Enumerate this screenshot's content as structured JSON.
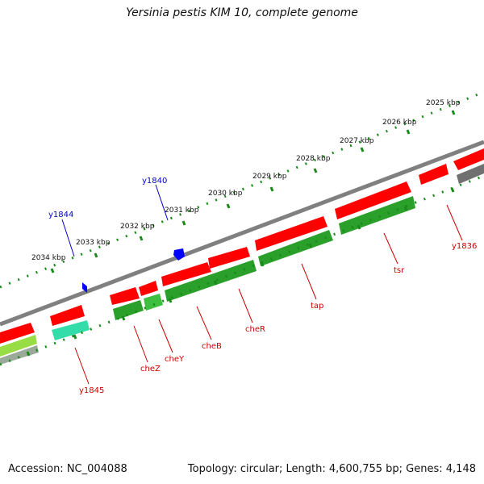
{
  "title": "Yersinia pestis KIM 10, complete genome",
  "footer": {
    "accession": "Accession: NC_004088",
    "summary": "Topology: circular; Length: 4,600,755 bp; Genes: 4,148"
  },
  "colors": {
    "backbone": "#808080",
    "ticks": "#1a8a1a",
    "gene_red": "#ff0000",
    "gene_green": "#2aa02a",
    "gene_cyan": "#33ddaa",
    "gene_gray": "#707070",
    "label_red": "#cc0000",
    "label_blue": "#0000cc",
    "marker_blue": "#0000ff"
  },
  "scale_labels": [
    "2025 kbp",
    "2026 kbp",
    "2027 kbp",
    "2028 kbp",
    "2029 kbp",
    "2030 kbp",
    "2031 kbp",
    "2032 kbp",
    "2033 kbp",
    "2034 kbp"
  ],
  "gene_labels": {
    "y1836": "y1836",
    "tsr": "tsr",
    "tap": "tap",
    "cheR": "cheR",
    "cheB": "cheB",
    "cheY": "cheY",
    "cheZ": "cheZ",
    "y1845": "y1845",
    "y1840": "y1840",
    "y1844": "y1844"
  }
}
